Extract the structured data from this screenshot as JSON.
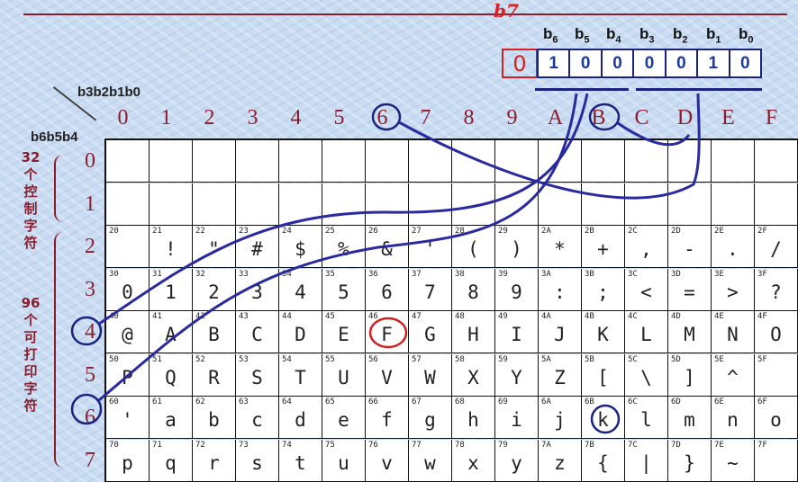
{
  "annotation_b7": "b7",
  "bit_labels": [
    "b6",
    "b5",
    "b4",
    "b3",
    "b2",
    "b1",
    "b0"
  ],
  "bit_values": [
    "1",
    "0",
    "0",
    "0",
    "0",
    "1",
    "0"
  ],
  "red_bit": "0",
  "col_header": "b3b2b1b0",
  "row_header": "b6b5b4",
  "col_numbers": [
    "0",
    "1",
    "2",
    "3",
    "4",
    "5",
    "6",
    "7",
    "8",
    "9",
    "A",
    "B",
    "C",
    "D",
    "E",
    "F"
  ],
  "row_numbers": [
    "0",
    "1",
    "2",
    "3",
    "4",
    "5",
    "6",
    "7"
  ],
  "side_control": "32 个 控 制 字 符",
  "side_printable": "96 个 可 打 印 字 符",
  "rows": [
    {
      "codes": [
        "",
        "",
        "",
        "",
        "",
        "",
        "",
        "",
        "",
        "",
        "",
        "",
        "",
        "",
        "",
        ""
      ],
      "chars": [
        "",
        "",
        "",
        "",
        "",
        "",
        "",
        "",
        "",
        "",
        "",
        "",
        "",
        "",
        "",
        ""
      ]
    },
    {
      "codes": [
        "",
        "",
        "",
        "",
        "",
        "",
        "",
        "",
        "",
        "",
        "",
        "",
        "",
        "",
        "",
        ""
      ],
      "chars": [
        "",
        "",
        "",
        "",
        "",
        "",
        "",
        "",
        "",
        "",
        "",
        "",
        "",
        "",
        "",
        ""
      ]
    },
    {
      "codes": [
        "20",
        "21",
        "22",
        "23",
        "24",
        "25",
        "26",
        "27",
        "28",
        "29",
        "2A",
        "2B",
        "2C",
        "2D",
        "2E",
        "2F"
      ],
      "chars": [
        "",
        " !",
        "\"",
        "#",
        "$",
        "%",
        "&",
        "'",
        "(",
        ")",
        "*",
        "+",
        ",",
        "-",
        ".",
        "/"
      ]
    },
    {
      "codes": [
        "30",
        "31",
        "32",
        "33",
        "34",
        "35",
        "36",
        "37",
        "38",
        "39",
        "3A",
        "3B",
        "3C",
        "3D",
        "3E",
        "3F"
      ],
      "chars": [
        "0",
        "1",
        "2",
        "3",
        "4",
        "5",
        "6",
        "7",
        "8",
        "9",
        ":",
        ";",
        "<",
        "=",
        ">",
        "?"
      ]
    },
    {
      "codes": [
        "40",
        "41",
        "42",
        "43",
        "44",
        "45",
        "46",
        "47",
        "48",
        "49",
        "4A",
        "4B",
        "4C",
        "4D",
        "4E",
        "4F"
      ],
      "chars": [
        "@",
        "A",
        "B",
        "C",
        "D",
        "E",
        "F",
        "G",
        "H",
        "I",
        "J",
        "K",
        "L",
        "M",
        "N",
        "O"
      ]
    },
    {
      "codes": [
        "50",
        "51",
        "52",
        "53",
        "54",
        "55",
        "56",
        "57",
        "58",
        "59",
        "5A",
        "5B",
        "5C",
        "5D",
        "5E",
        "5F"
      ],
      "chars": [
        "P",
        "Q",
        "R",
        "S",
        "T",
        "U",
        "V",
        "W",
        "X",
        "Y",
        "Z",
        "[",
        "\\",
        "]",
        "^",
        ""
      ]
    },
    {
      "codes": [
        "60",
        "61",
        "62",
        "63",
        "64",
        "65",
        "66",
        "67",
        "68",
        "69",
        "6A",
        "6B",
        "6C",
        "6D",
        "6E",
        "6F"
      ],
      "chars": [
        "'",
        "a",
        "b",
        "c",
        "d",
        "e",
        "f",
        "g",
        "h",
        "i",
        "j",
        "k",
        "l",
        "m",
        "n",
        "o"
      ]
    },
    {
      "codes": [
        "70",
        "71",
        "72",
        "73",
        "74",
        "75",
        "76",
        "77",
        "78",
        "79",
        "7A",
        "7B",
        "7C",
        "7D",
        "7E",
        "7F"
      ],
      "chars": [
        "p",
        "q",
        "r",
        "s",
        "t",
        "u",
        "v",
        "w",
        "x",
        "y",
        "z",
        "{",
        "|",
        "}",
        "~",
        ""
      ]
    }
  ],
  "colors": {
    "accent": "#8b1e2e",
    "ink": "#1a237e",
    "highlight": "#d32020"
  }
}
